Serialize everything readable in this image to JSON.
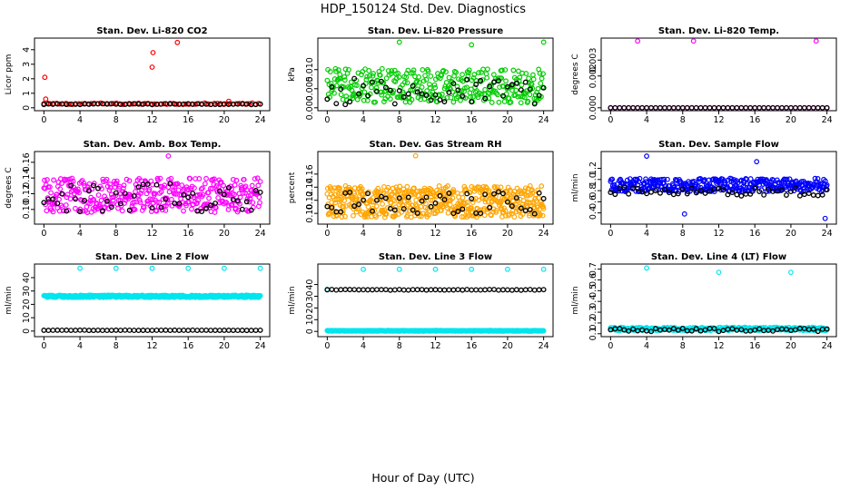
{
  "title": "HDP_150124  Std. Dev. Diagnostics",
  "xlabel": "Hour of Day (UTC)",
  "colors": {
    "black": "#000000",
    "red": "#ff0000",
    "green": "#00cc00",
    "magenta": "#ff00ff",
    "orange": "#ffa500",
    "blue": "#0000ff",
    "cyan": "#00e5ee"
  },
  "chart_data": [
    {
      "type": "scatter",
      "title": "Stan. Dev. Li-820 CO2",
      "ylabel": "Licor ppm",
      "xlim": [
        0,
        24
      ],
      "ylim": [
        0,
        4.6
      ],
      "xticks": [
        "0",
        "4",
        "8",
        "12",
        "16",
        "20",
        "24"
      ],
      "yticks": [
        "0",
        "1",
        "2",
        "3",
        "4"
      ],
      "ytick_values": [
        0,
        1,
        2,
        3,
        4
      ],
      "series": [
        {
          "name": "points",
          "color": "red",
          "density": 0.35,
          "baseline": 0.28,
          "spread": 0.05,
          "outliers": [
            [
              0.1,
              2.1
            ],
            [
              0.2,
              0.6
            ],
            [
              12.0,
              2.8
            ],
            [
              12.1,
              3.8
            ],
            [
              14.8,
              4.5
            ],
            [
              20.5,
              0.45
            ]
          ]
        },
        {
          "name": "hourly",
          "color": "black",
          "baseline": 0.25,
          "spread": 0.03
        }
      ]
    },
    {
      "type": "scatter",
      "title": "Stan. Dev. Li-820 Pressure",
      "ylabel": "kPa",
      "xlim": [
        0,
        24
      ],
      "ylim": [
        0,
        0.0175
      ],
      "xticks": [
        "0",
        "4",
        "8",
        "12",
        "16",
        "20",
        "24"
      ],
      "yticks": [
        "0.000",
        "0.005",
        "0.010"
      ],
      "ytick_values": [
        0,
        0.005,
        0.01
      ],
      "series": [
        {
          "name": "points",
          "color": "green",
          "density": 0.07,
          "baseline": 0.0058,
          "spread": 0.0045,
          "outliers": [
            [
              8.0,
              0.0172
            ],
            [
              16.0,
              0.0165
            ],
            [
              24.0,
              0.0172
            ]
          ]
        },
        {
          "name": "hourly",
          "color": "black",
          "baseline": 0.0042,
          "spread": 0.0035
        }
      ]
    },
    {
      "type": "scatter",
      "title": "Stan. Dev. Li-820 Temp.",
      "ylabel": "degrees C",
      "xlim": [
        0,
        24
      ],
      "ylim": [
        0,
        0.0042
      ],
      "xticks": [
        "0",
        "4",
        "8",
        "12",
        "16",
        "20",
        "24"
      ],
      "yticks": [
        "0.000",
        "0.002",
        "0.003"
      ],
      "ytick_values": [
        0,
        0.002,
        0.003
      ],
      "series": [
        {
          "name": "points",
          "color": "magenta",
          "density": 0.5,
          "baseline": 0.0,
          "spread": 0.0,
          "outliers": [
            [
              3.0,
              0.0042
            ],
            [
              9.2,
              0.0042
            ],
            [
              22.8,
              0.0042
            ]
          ]
        },
        {
          "name": "hourly",
          "color": "black",
          "baseline": 0.0,
          "spread": 0.0
        }
      ]
    },
    {
      "type": "scatter",
      "title": "Stan. Dev. Amb. Box Temp.",
      "ylabel": "degrees C",
      "xlim": [
        0,
        24
      ],
      "ylim": [
        0.085,
        0.17
      ],
      "xticks": [
        "0",
        "4",
        "8",
        "12",
        "16",
        "20",
        "24"
      ],
      "yticks": [
        "0.10",
        "0.12",
        "0.14",
        "0.16"
      ],
      "ytick_values": [
        0.1,
        0.12,
        0.14,
        0.16
      ],
      "series": [
        {
          "name": "points",
          "color": "magenta",
          "density": 0.06,
          "baseline": 0.118,
          "spread": 0.022,
          "outliers": [
            [
              13.8,
              0.168
            ]
          ]
        },
        {
          "name": "hourly",
          "color": "black",
          "baseline": 0.115,
          "spread": 0.018
        }
      ]
    },
    {
      "type": "scatter",
      "title": "Stan. Dev. Gas Stream RH",
      "ylabel": "percent",
      "xlim": [
        0,
        24
      ],
      "ylim": [
        0.088,
        0.19
      ],
      "xticks": [
        "0",
        "4",
        "8",
        "12",
        "16",
        "20",
        "24"
      ],
      "yticks": [
        "0.10",
        "0.12",
        "0.14",
        "0.16"
      ],
      "ytick_values": [
        0.1,
        0.12,
        0.14,
        0.16
      ],
      "series": [
        {
          "name": "points",
          "color": "orange",
          "density": 0.045,
          "baseline": 0.118,
          "spread": 0.024,
          "outliers": [
            [
              9.8,
              0.188
            ]
          ]
        },
        {
          "name": "hourly",
          "color": "black",
          "baseline": 0.115,
          "spread": 0.018
        }
      ]
    },
    {
      "type": "scatter",
      "title": "Stan. Dev. Sample Flow",
      "ylabel": "ml/min",
      "xlim": [
        0,
        24
      ],
      "ylim": [
        0.25,
        1.45
      ],
      "xticks": [
        "0",
        "4",
        "8",
        "12",
        "16",
        "20",
        "24"
      ],
      "yticks": [
        "0.4",
        "0.6",
        "0.8",
        "1.0",
        "1.2"
      ],
      "ytick_values": [
        0.4,
        0.6,
        0.8,
        1.0,
        1.2
      ],
      "series": [
        {
          "name": "points",
          "color": "blue",
          "density": 0.06,
          "baseline": 0.9,
          "spread": 0.12,
          "outliers": [
            [
              4.0,
              1.42
            ],
            [
              8.2,
              0.38
            ],
            [
              16.2,
              1.32
            ],
            [
              23.8,
              0.3
            ]
          ]
        },
        {
          "name": "hourly",
          "color": "black",
          "baseline": 0.78,
          "spread": 0.08
        }
      ]
    },
    {
      "type": "scatter",
      "title": "Stan. Dev. Line 2 Flow",
      "ylabel": "ml/min",
      "xlim": [
        0,
        24
      ],
      "ylim": [
        -2,
        48
      ],
      "xticks": [
        "0",
        "4",
        "8",
        "12",
        "16",
        "20",
        "24"
      ],
      "yticks": [
        "0",
        "10",
        "20",
        "30",
        "40"
      ],
      "ytick_values": [
        0,
        10,
        20,
        30,
        40
      ],
      "series": [
        {
          "name": "points",
          "color": "cyan",
          "density": 0.05,
          "baseline": 26.0,
          "spread": 0.8,
          "outliers": [
            [
              4.0,
              47
            ],
            [
              8.0,
              47
            ],
            [
              12.0,
              47
            ],
            [
              16.0,
              47
            ],
            [
              20.0,
              47
            ],
            [
              24.0,
              47
            ]
          ]
        },
        {
          "name": "hourly",
          "color": "black",
          "baseline": 0.6,
          "spread": 0.1
        }
      ]
    },
    {
      "type": "scatter",
      "title": "Stan. Dev. Line 3 Flow",
      "ylabel": "ml/min",
      "xlim": [
        0,
        24
      ],
      "ylim": [
        -2,
        55
      ],
      "xticks": [
        "0",
        "4",
        "8",
        "12",
        "16",
        "20",
        "24"
      ],
      "yticks": [
        "0",
        "10",
        "20",
        "30",
        "40"
      ],
      "ytick_values": [
        0,
        10,
        20,
        30,
        40
      ],
      "series": [
        {
          "name": "points",
          "color": "cyan",
          "density": 0.05,
          "baseline": 0.5,
          "spread": 0.3,
          "outliers": [
            [
              0.0,
              36
            ],
            [
              4.0,
              53
            ],
            [
              8.0,
              53
            ],
            [
              12.0,
              53
            ],
            [
              16.0,
              53
            ],
            [
              20.0,
              53
            ],
            [
              24.0,
              53
            ]
          ]
        },
        {
          "name": "hourly",
          "color": "black",
          "baseline": 35.5,
          "spread": 0.3
        }
      ]
    },
    {
      "type": "scatter",
      "title": "Stan. Dev. Line 4 (LT) Flow",
      "ylabel": "ml/min",
      "xlim": [
        0,
        24
      ],
      "ylim": [
        0.1,
        0.72
      ],
      "xticks": [
        "0",
        "4",
        "8",
        "12",
        "16",
        "20",
        "24"
      ],
      "yticks": [
        "0.1",
        "0.2",
        "0.3",
        "0.4",
        "0.5",
        "0.6",
        "0.7"
      ],
      "ytick_values": [
        0.1,
        0.2,
        0.3,
        0.4,
        0.5,
        0.6,
        0.7
      ],
      "series": [
        {
          "name": "points",
          "color": "cyan",
          "density": 0.08,
          "baseline": 0.145,
          "spread": 0.015,
          "outliers": [
            [
              4.0,
              0.71
            ],
            [
              12.0,
              0.67
            ],
            [
              20.0,
              0.67
            ]
          ]
        },
        {
          "name": "hourly",
          "color": "black",
          "baseline": 0.135,
          "spread": 0.015
        }
      ]
    }
  ]
}
